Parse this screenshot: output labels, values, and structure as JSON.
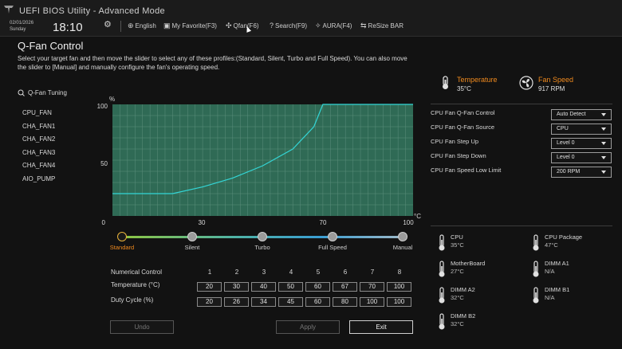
{
  "app": {
    "title": "UEFI BIOS Utility - Advanced Mode",
    "date": "02/01/2026",
    "day": "Sunday",
    "time": "18:10"
  },
  "toolbar": {
    "language": "English",
    "favorite": "My Favorite(F3)",
    "qfan": "Qfan(F6)",
    "search": "Search(F9)",
    "aura": "AURA(F4)",
    "resize_bar": "ReSize BAR"
  },
  "page": {
    "title": "Q-Fan Control",
    "description": "Select your target fan and then move the slider to select any of these profiles:(Standard, Silent, Turbo and Full Speed). You can also move the slider to [Manual] and manually configure the fan's operating speed."
  },
  "tuning": {
    "label": "Q-Fan Tuning",
    "fans": [
      "CPU_FAN",
      "CHA_FAN1",
      "CHA_FAN2",
      "CHA_FAN3",
      "CHA_FAN4",
      "AIO_PUMP"
    ],
    "selected_index": 0
  },
  "chart_data": {
    "type": "line",
    "title": "",
    "ylabel": "%",
    "xlabel": "°C",
    "x_ticks": [
      "30",
      "70",
      "100"
    ],
    "y_ticks": [
      "100",
      "50",
      "0"
    ],
    "xlim": [
      0,
      100
    ],
    "ylim": [
      0,
      100
    ],
    "grid": true,
    "series": [
      {
        "x": [
          0,
          20,
          30,
          40,
          50,
          60,
          67,
          70,
          100
        ],
        "y": [
          20,
          20,
          26,
          34,
          45,
          60,
          80,
          100,
          100
        ],
        "color": "#33d6d6"
      }
    ],
    "plot_background": "#2f6a55"
  },
  "profiles": {
    "items": [
      "Standard",
      "Silent",
      "Turbo",
      "Full Speed",
      "Manual"
    ],
    "selected_index": 0
  },
  "numerical": {
    "header": "Numerical Control",
    "columns": [
      "1",
      "2",
      "3",
      "4",
      "5",
      "6",
      "7",
      "8"
    ],
    "temperature_label": "Temperature (°C)",
    "temperature": [
      "20",
      "30",
      "40",
      "50",
      "60",
      "67",
      "70",
      "100"
    ],
    "duty_label": "Duty Cycle (%)",
    "duty": [
      "20",
      "26",
      "34",
      "45",
      "60",
      "80",
      "100",
      "100"
    ]
  },
  "buttons": {
    "undo": "Undo",
    "apply": "Apply",
    "exit": "Exit"
  },
  "status": {
    "temperature_label": "Temperature",
    "temperature_value": "35°C",
    "fan_label": "Fan Speed",
    "fan_value": "917 RPM"
  },
  "settings": [
    {
      "label": "CPU Fan Q-Fan Control",
      "value": "Auto Detect"
    },
    {
      "label": "CPU Fan Q-Fan Source",
      "value": "CPU"
    },
    {
      "label": "CPU Fan Step Up",
      "value": "Level 0"
    },
    {
      "label": "CPU Fan Step Down",
      "value": "Level 0"
    },
    {
      "label": "CPU Fan Speed Low Limit",
      "value": "200 RPM"
    }
  ],
  "sensors": [
    {
      "name": "CPU",
      "value": "35°C"
    },
    {
      "name": "CPU Package",
      "value": "47°C"
    },
    {
      "name": "MotherBoard",
      "value": "27°C"
    },
    {
      "name": "DIMM A1",
      "value": "N/A"
    },
    {
      "name": "DIMM A2",
      "value": "32°C"
    },
    {
      "name": "DIMM B1",
      "value": "N/A"
    },
    {
      "name": "DIMM B2",
      "value": "32°C"
    }
  ],
  "colors": {
    "accent": "#f08a1e",
    "curve": "#33d6d6",
    "selected_fan_bg": "#3d3021"
  }
}
